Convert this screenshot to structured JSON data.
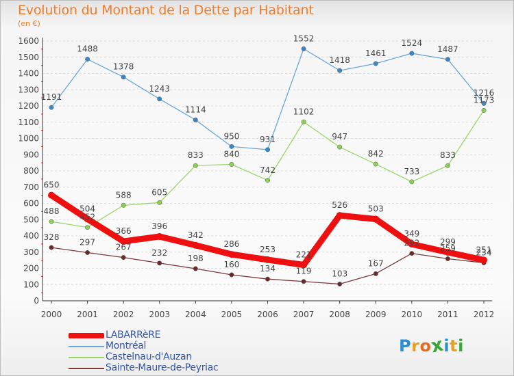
{
  "header": {
    "title": "Evolution du Montant de la Dette par Habitant",
    "subtitle": "(en €)"
  },
  "logo": {
    "text": "Proxiti",
    "colors": [
      "#2a8fd6",
      "#e8a020",
      "#e86a1c",
      "#3aa53a",
      "#2a8fd6",
      "#e8a020",
      "#3aa53a"
    ]
  },
  "chart_data": {
    "type": "line",
    "title": "Evolution du Montant de la Dette par Habitant",
    "subtitle": "(en €)",
    "xlabel": "",
    "ylabel": "",
    "x": [
      "2000",
      "2001",
      "2002",
      "2003",
      "2004",
      "2005",
      "2006",
      "2007",
      "2008",
      "2009",
      "2010",
      "2011",
      "2012"
    ],
    "ylim": [
      0,
      1600
    ],
    "yticks": [
      "0",
      "100",
      "200",
      "300",
      "400",
      "500",
      "600",
      "700",
      "800",
      "900",
      "1000",
      "1100",
      "1200",
      "1300",
      "1400",
      "1500",
      "1600"
    ],
    "grid": "horizontal",
    "legend_position": "bottom-left",
    "series": [
      {
        "name": "LABARRèRE",
        "color": "#ee1010",
        "values": [
          650,
          504,
          366,
          396,
          342,
          286,
          253,
          221,
          526,
          503,
          349,
          299,
          251
        ],
        "labels": [
          "650",
          "504",
          "366",
          "396",
          "342",
          "286",
          "253",
          "221",
          "526",
          "503",
          "349",
          "299",
          "251"
        ]
      },
      {
        "name": "Montréal",
        "color": "#6aa6d8",
        "marker": "#3a86c6",
        "values": [
          1191,
          1488,
          1378,
          1243,
          1114,
          950,
          931,
          1552,
          1418,
          1461,
          1524,
          1487,
          1216
        ],
        "labels": [
          "1191",
          "1488",
          "1378",
          "1243",
          "1114",
          "950",
          "931",
          "1552",
          "1418",
          "1461",
          "1524",
          "1487",
          "1216"
        ]
      },
      {
        "name": "Castelnau-d'Auzan",
        "color": "#9ad66a",
        "marker": "#8ccf58",
        "values": [
          488,
          452,
          588,
          605,
          833,
          840,
          742,
          1102,
          947,
          842,
          733,
          833,
          1173
        ],
        "labels": [
          "488",
          "452",
          "588",
          "605",
          "833",
          "840",
          "742",
          "1102",
          "947",
          "842",
          "733",
          "833",
          "1173"
        ]
      },
      {
        "name": "Sainte-Maure-de-Peyriac",
        "color": "#7a3838",
        "marker": "#6a2a2a",
        "values": [
          328,
          297,
          267,
          232,
          198,
          160,
          134,
          119,
          103,
          167,
          292,
          259,
          234
        ],
        "labels": [
          "328",
          "297",
          "267",
          "232",
          "198",
          "160",
          "134",
          "119",
          "103",
          "167",
          "292",
          "259",
          "234"
        ]
      }
    ]
  }
}
